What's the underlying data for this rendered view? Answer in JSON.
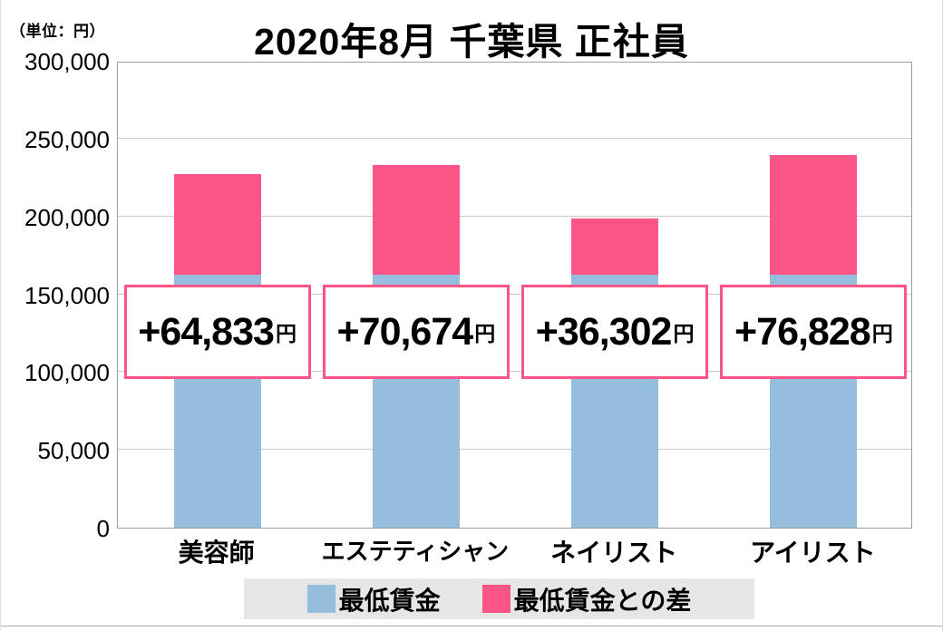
{
  "header": {
    "unit_label": "（単位：円）",
    "title": "2020年8月 千葉県 正社員"
  },
  "chart_data": {
    "type": "bar",
    "stacked": true,
    "title": "2020年8月 千葉県 正社員",
    "unit_label": "（単位：円）",
    "categories": [
      "美容師",
      "エステティシャン",
      "ネイリスト",
      "アイリスト"
    ],
    "series": [
      {
        "name": "最低賃金",
        "color": "#95bedd",
        "values": [
          162448,
          162448,
          162448,
          162448
        ]
      },
      {
        "name": "最低賃金との差",
        "color": "#fb5588",
        "values": [
          64833,
          70674,
          36302,
          76828
        ]
      }
    ],
    "bar_labels": [
      {
        "amount": "+64,833",
        "unit": "円"
      },
      {
        "amount": "+70,674",
        "unit": "円"
      },
      {
        "amount": "+36,302",
        "unit": "円"
      },
      {
        "amount": "+76,828",
        "unit": "円"
      }
    ],
    "ylim": [
      0,
      300000
    ],
    "ytick_step": 50000,
    "yticks": [
      {
        "value": 0,
        "label": "0"
      },
      {
        "value": 50000,
        "label": "50,000"
      },
      {
        "value": 100000,
        "label": "100,000"
      },
      {
        "value": 150000,
        "label": "150,000"
      },
      {
        "value": 200000,
        "label": "200,000"
      },
      {
        "value": 250000,
        "label": "250,000"
      },
      {
        "value": 300000,
        "label": "300,000"
      }
    ],
    "grid": true,
    "legend_position": "bottom"
  },
  "legend": {
    "items": [
      {
        "label": "最低賃金",
        "color": "#95bedd"
      },
      {
        "label": "最低賃金との差",
        "color": "#fb5588"
      }
    ]
  },
  "colors": {
    "min_wage_bar": "#95bedd",
    "diff_bar": "#fb5588",
    "diff_box_border": "#fb5588",
    "gridline": "#c9c9c9",
    "plot_border": "#9f9f9f",
    "legend_background": "#e6e6e6",
    "text": "#000000"
  }
}
